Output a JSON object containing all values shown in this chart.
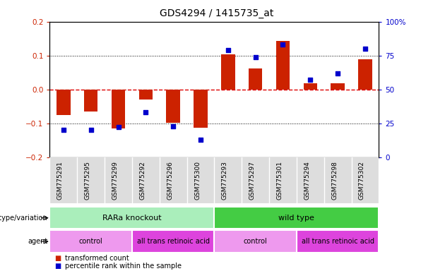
{
  "title": "GDS4294 / 1415735_at",
  "samples": [
    "GSM775291",
    "GSM775295",
    "GSM775299",
    "GSM775292",
    "GSM775296",
    "GSM775300",
    "GSM775293",
    "GSM775297",
    "GSM775301",
    "GSM775294",
    "GSM775298",
    "GSM775302"
  ],
  "transformed_count": [
    -0.075,
    -0.065,
    -0.115,
    -0.03,
    -0.098,
    -0.113,
    0.103,
    0.062,
    0.143,
    0.018,
    0.018,
    0.088
  ],
  "percentile_rank": [
    20,
    20,
    22,
    33,
    23,
    13,
    79,
    74,
    83,
    57,
    62,
    80
  ],
  "left_ylim": [
    -0.2,
    0.2
  ],
  "right_ylim": [
    0,
    100
  ],
  "left_yticks": [
    -0.2,
    -0.1,
    0.0,
    0.1,
    0.2
  ],
  "right_yticks": [
    0,
    25,
    50,
    75,
    100
  ],
  "right_yticklabels": [
    "0",
    "25",
    "50",
    "75",
    "100%"
  ],
  "hline_zero_color": "#dd0000",
  "hline_dotted_color": "#000000",
  "bar_color": "#cc2200",
  "dot_color": "#0000cc",
  "bar_width": 0.5,
  "groups": [
    {
      "label": "RARa knockout",
      "start": 0,
      "end": 6,
      "color": "#aaeebb"
    },
    {
      "label": "wild type",
      "start": 6,
      "end": 12,
      "color": "#44cc44"
    }
  ],
  "agents": [
    {
      "label": "control",
      "start": 0,
      "end": 3,
      "color": "#ee99ee"
    },
    {
      "label": "all trans retinoic acid",
      "start": 3,
      "end": 6,
      "color": "#dd44dd"
    },
    {
      "label": "control",
      "start": 6,
      "end": 9,
      "color": "#ee99ee"
    },
    {
      "label": "all trans retinoic acid",
      "start": 9,
      "end": 12,
      "color": "#dd44dd"
    }
  ],
  "legend_bar_label": "transformed count",
  "legend_dot_label": "percentile rank within the sample",
  "genotype_label": "genotype/variation",
  "agent_label": "agent",
  "background_color": "#ffffff",
  "tick_label_color_left": "#cc2200",
  "tick_label_color_right": "#0000cc"
}
